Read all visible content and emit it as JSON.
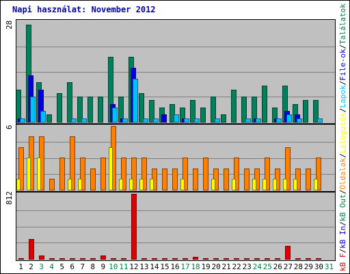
{
  "title": "Napi használat: November 2012",
  "colors": {
    "hits": "#00805c",
    "files": "#0000d8",
    "pages": "#00c0ff",
    "visits": "#ffff00",
    "sites": "#ff8000",
    "kb": "#e00000",
    "weekday": "#000000",
    "weekend": "#008040",
    "title": "#0000aa"
  },
  "legend": [
    {
      "text": "kB F",
      "color": "#e00000"
    },
    {
      "text": "/",
      "color": "#000000"
    },
    {
      "text": "kB In",
      "color": "#0000d8"
    },
    {
      "text": "/",
      "color": "#000000"
    },
    {
      "text": "kB Out",
      "color": "#008040"
    },
    {
      "text": "/",
      "color": "#000000"
    },
    {
      "text": "Oldalak",
      "color": "#ff8000"
    },
    {
      "text": "/",
      "color": "#000000"
    },
    {
      "text": "Látogatók",
      "color": "#ffff00"
    },
    {
      "text": "/",
      "color": "#000000"
    },
    {
      "text": "Lapok",
      "color": "#00c0ff"
    },
    {
      "text": "/",
      "color": "#000000"
    },
    {
      "text": "File-ok",
      "color": "#0000d8"
    },
    {
      "text": "/",
      "color": "#000000"
    },
    {
      "text": "Találatok",
      "color": "#008040"
    }
  ],
  "chart_data": [
    {
      "type": "bar",
      "panel": "top",
      "ymax_label": "28",
      "ylim": [
        0,
        28
      ],
      "grid": true,
      "categories": [
        "1",
        "2",
        "3",
        "4",
        "5",
        "6",
        "7",
        "8",
        "9",
        "10",
        "11",
        "12",
        "13",
        "14",
        "15",
        "16",
        "17",
        "18",
        "19",
        "20",
        "21",
        "22",
        "23",
        "24",
        "25",
        "26",
        "27",
        "28",
        "29",
        "30",
        "31"
      ],
      "series": [
        {
          "key": "hits",
          "values": [
            9,
            27,
            11,
            2,
            8,
            11,
            7,
            7,
            7,
            18,
            7,
            18,
            8,
            6,
            4,
            5,
            4,
            6,
            4,
            7,
            2,
            9,
            7,
            7,
            10,
            4,
            10,
            5,
            6,
            6,
            0
          ]
        },
        {
          "key": "files",
          "values": [
            1,
            13,
            9,
            0,
            0,
            0,
            0,
            0,
            0,
            5,
            1,
            15,
            0,
            0,
            2,
            0,
            1,
            0,
            0,
            0,
            0,
            0,
            0,
            1,
            0,
            1,
            3,
            2,
            0,
            0,
            0
          ]
        },
        {
          "key": "pages",
          "values": [
            1,
            7,
            3,
            0,
            0,
            1,
            1,
            0,
            0,
            4,
            1,
            12,
            1,
            1,
            0,
            2,
            1,
            1,
            0,
            1,
            0,
            0,
            1,
            1,
            0,
            1,
            2,
            1,
            0,
            1,
            0
          ]
        }
      ]
    },
    {
      "type": "bar",
      "panel": "middle",
      "ymax_label": "6",
      "ylim": [
        0,
        6
      ],
      "grid": true,
      "categories": [
        "1",
        "2",
        "3",
        "4",
        "5",
        "6",
        "7",
        "8",
        "9",
        "10",
        "11",
        "12",
        "13",
        "14",
        "15",
        "16",
        "17",
        "18",
        "19",
        "20",
        "21",
        "22",
        "23",
        "24",
        "25",
        "26",
        "27",
        "28",
        "29",
        "30",
        "31"
      ],
      "series": [
        {
          "key": "sites",
          "values": [
            4,
            5,
            5,
            1,
            3,
            5,
            3,
            2,
            3,
            6,
            3,
            3,
            3,
            2,
            2,
            2,
            3,
            2,
            3,
            2,
            2,
            3,
            2,
            2,
            3,
            2,
            4,
            2,
            2,
            3,
            0
          ]
        },
        {
          "key": "visits",
          "values": [
            1,
            3,
            3,
            0,
            0,
            1,
            1,
            0,
            0,
            4,
            1,
            1,
            1,
            1,
            0,
            0,
            1,
            0,
            0,
            1,
            0,
            1,
            0,
            1,
            1,
            1,
            1,
            1,
            0,
            1,
            0
          ]
        }
      ]
    },
    {
      "type": "bar",
      "panel": "bottom",
      "ymax_label": "812",
      "ylim": [
        0,
        812
      ],
      "grid": true,
      "categories": [
        "1",
        "2",
        "3",
        "4",
        "5",
        "6",
        "7",
        "8",
        "9",
        "10",
        "11",
        "12",
        "13",
        "14",
        "15",
        "16",
        "17",
        "18",
        "19",
        "20",
        "21",
        "22",
        "23",
        "24",
        "25",
        "26",
        "27",
        "28",
        "29",
        "30",
        "31"
      ],
      "series": [
        {
          "key": "kb",
          "values": [
            10,
            250,
            40,
            10,
            10,
            10,
            10,
            10,
            40,
            10,
            10,
            812,
            10,
            10,
            10,
            10,
            10,
            25,
            10,
            10,
            10,
            10,
            10,
            10,
            10,
            10,
            160,
            10,
            10,
            10,
            0
          ]
        }
      ]
    }
  ],
  "x_axis": {
    "labels": [
      "1",
      "2",
      "3",
      "4",
      "5",
      "6",
      "7",
      "8",
      "9",
      "10",
      "11",
      "12",
      "13",
      "14",
      "15",
      "16",
      "17",
      "18",
      "19",
      "20",
      "21",
      "22",
      "23",
      "24",
      "25",
      "26",
      "27",
      "28",
      "29",
      "30",
      "31"
    ],
    "weekend": [
      false,
      false,
      true,
      true,
      false,
      false,
      false,
      false,
      false,
      true,
      true,
      false,
      false,
      false,
      false,
      false,
      true,
      true,
      false,
      false,
      false,
      false,
      false,
      true,
      true,
      false,
      false,
      false,
      false,
      false,
      true
    ]
  }
}
